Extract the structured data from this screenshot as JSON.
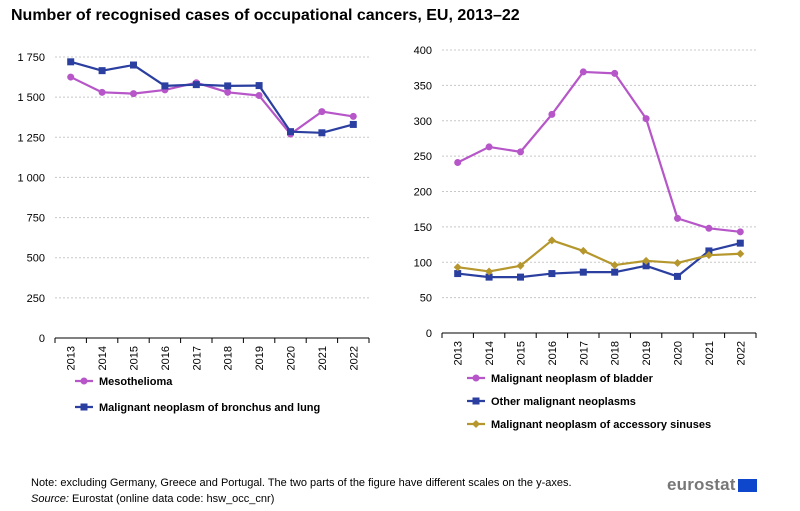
{
  "title": "Number of recognised cases of occupational cancers, EU, 2013–22",
  "note": "Note: excluding Germany, Greece and Portugal. The two parts of the figure have different scales on the y-axes.",
  "source_label": "Source:",
  "source_text": " Eurostat (online data code: hsw_occ_cnr)",
  "logo_text": "eurostat",
  "logo_icon": "eu-flag-icon",
  "chart_data": [
    {
      "type": "line",
      "categories": [
        "2013",
        "2014",
        "2015",
        "2016",
        "2017",
        "2018",
        "2019",
        "2020",
        "2021",
        "2022"
      ],
      "ylim": [
        0,
        1750
      ],
      "yticks": [
        0,
        250,
        500,
        750,
        1000,
        1250,
        1500,
        1750
      ],
      "ytick_labels": [
        "0",
        "250",
        "500",
        "750",
        "1 000",
        "1 250",
        "1 500",
        "1 750"
      ],
      "grid": true,
      "series": [
        {
          "name": "Mesothelioma",
          "color": "#b656c8",
          "marker": "circle",
          "values": [
            1625,
            1530,
            1522,
            1545,
            1590,
            1530,
            1510,
            1270,
            1410,
            1380
          ]
        },
        {
          "name": "Malignant neoplasm of bronchus and lung",
          "color": "#2a3fa0",
          "marker": "square",
          "values": [
            1720,
            1665,
            1700,
            1570,
            1578,
            1570,
            1572,
            1285,
            1278,
            1330
          ]
        }
      ]
    },
    {
      "type": "line",
      "categories": [
        "2013",
        "2014",
        "2015",
        "2016",
        "2017",
        "2018",
        "2019",
        "2020",
        "2021",
        "2022"
      ],
      "ylim": [
        0,
        400
      ],
      "yticks": [
        0,
        50,
        100,
        150,
        200,
        250,
        300,
        350,
        400
      ],
      "ytick_labels": [
        "0",
        "50",
        "100",
        "150",
        "200",
        "250",
        "300",
        "350",
        "400"
      ],
      "grid": true,
      "series": [
        {
          "name": "Malignant neoplasm of bladder",
          "color": "#b656c8",
          "marker": "circle",
          "values": [
            241,
            263,
            256,
            309,
            369,
            367,
            303,
            162,
            148,
            143
          ]
        },
        {
          "name": "Other malignant neoplasms",
          "color": "#2a3fa0",
          "marker": "square",
          "values": [
            84,
            79,
            79,
            84,
            86,
            86,
            95,
            80,
            116,
            127
          ]
        },
        {
          "name": "Malignant neoplasm of accessory sinuses",
          "color": "#b5972e",
          "marker": "diamond",
          "values": [
            93,
            87,
            95,
            131,
            116,
            96,
            102,
            99,
            110,
            112
          ]
        }
      ]
    }
  ]
}
